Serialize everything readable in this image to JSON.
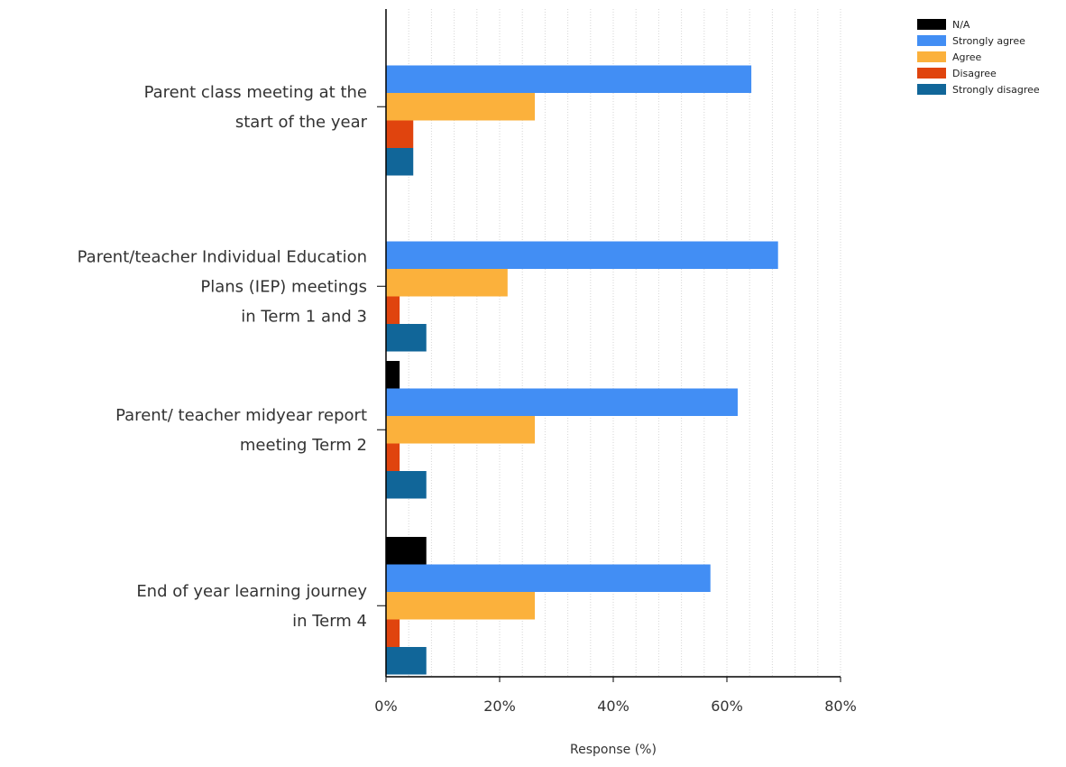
{
  "chart_data": {
    "type": "bar",
    "orientation": "horizontal",
    "categories": [
      [
        "Parent class meeting at the",
        "start of the year"
      ],
      [
        "Parent/teacher Individual Education",
        "Plans (IEP) meetings",
        "in Term 1 and 3"
      ],
      [
        "Parent/ teacher midyear report",
        "meeting Term 2"
      ],
      [
        "End of year learning journey",
        "in Term 4"
      ]
    ],
    "series": [
      {
        "name": "N/A",
        "color": "#000000",
        "values": [
          0,
          0,
          2.4,
          7.1
        ]
      },
      {
        "name": "Strongly agree",
        "color": "#428ef4",
        "values": [
          64.3,
          69.0,
          61.9,
          57.1
        ]
      },
      {
        "name": "Agree",
        "color": "#fbb13c",
        "values": [
          26.2,
          21.4,
          26.2,
          26.2
        ]
      },
      {
        "name": "Disagree",
        "color": "#e0440e",
        "values": [
          4.8,
          2.4,
          2.4,
          2.4
        ]
      },
      {
        "name": "Strongly disagree",
        "color": "#116699",
        "values": [
          4.8,
          7.1,
          7.1,
          7.1
        ]
      }
    ],
    "xlim": [
      0,
      80
    ],
    "xticks": [
      0,
      20,
      40,
      60,
      80
    ],
    "xtick_labels": [
      "0%",
      "20%",
      "40%",
      "60%",
      "80%"
    ],
    "xlabel": "Response (%)",
    "ylabel": "",
    "title": "",
    "grid": "vertical minor gridlines",
    "legend_position": "top-right"
  }
}
